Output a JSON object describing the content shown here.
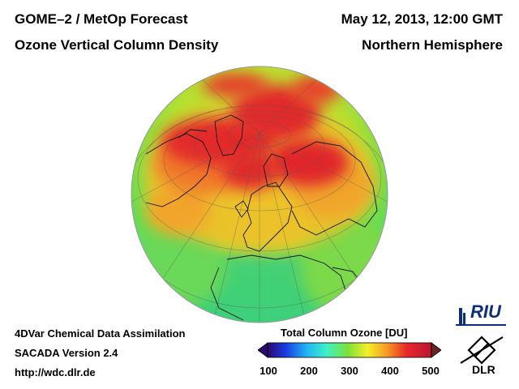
{
  "header": {
    "title_line1": "GOME–2 / MetOp Forecast",
    "title_line2": "Ozone Vertical Column Density",
    "date": "May 12, 2013, 12:00 GMT",
    "region": "Northern Hemisphere"
  },
  "footer": {
    "line1": "4DVar Chemical Data Assimilation",
    "line2": "SACADA Version 2.4",
    "line3": "http://wdc.dlr.de"
  },
  "colorbar": {
    "title": "Total Column Ozone [DU]",
    "ticks": [
      "100",
      "200",
      "300",
      "400",
      "500"
    ],
    "min": 100,
    "max": 500,
    "colors": [
      "#2a0a6e",
      "#1a3ce0",
      "#21b6f3",
      "#3ef0c8",
      "#7ee03a",
      "#f4ef2a",
      "#f49a22",
      "#e8262a",
      "#b81830",
      "#6a2620"
    ]
  },
  "logos": {
    "riu": "RIU",
    "dlr": "DLR"
  }
}
